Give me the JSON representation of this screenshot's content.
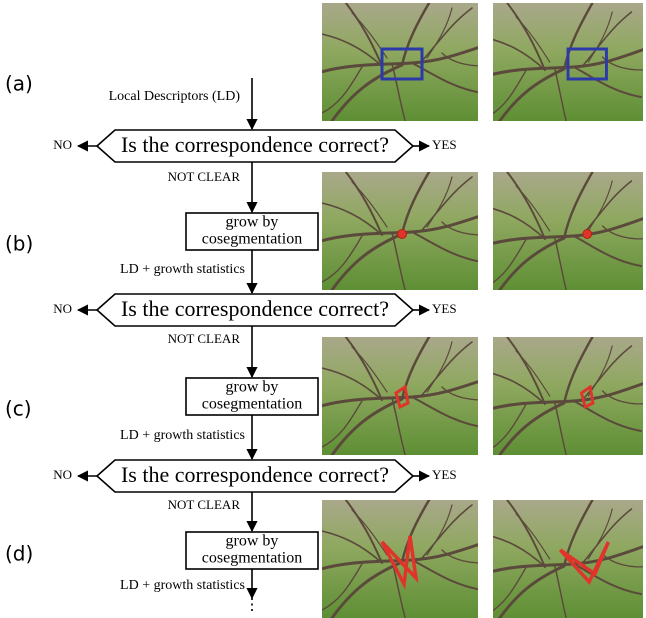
{
  "panels": [
    "(a)",
    "(b)",
    "(c)",
    "(d)"
  ],
  "flow": {
    "start": "Local Descriptors (LD)",
    "decisions": [
      {
        "question": "Is the correspondence correct?",
        "no": "NO",
        "yes": "YES",
        "unclear": "NOT CLEAR"
      },
      {
        "question": "Is the correspondence correct?",
        "no": "NO",
        "yes": "YES",
        "unclear": "NOT CLEAR"
      },
      {
        "question": "Is the correspondence correct?",
        "no": "NO",
        "yes": "YES",
        "unclear": "NOT CLEAR"
      }
    ],
    "steps": [
      {
        "action": [
          "grow by",
          "cosegmentation"
        ],
        "output": "LD + growth statistics"
      },
      {
        "action": [
          "grow by",
          "cosegmentation"
        ],
        "output": "LD + growth statistics"
      },
      {
        "action": [
          "grow by",
          "cosegmentation"
        ],
        "output": "LD + growth statistics"
      }
    ],
    "continuation": "⋮"
  }
}
